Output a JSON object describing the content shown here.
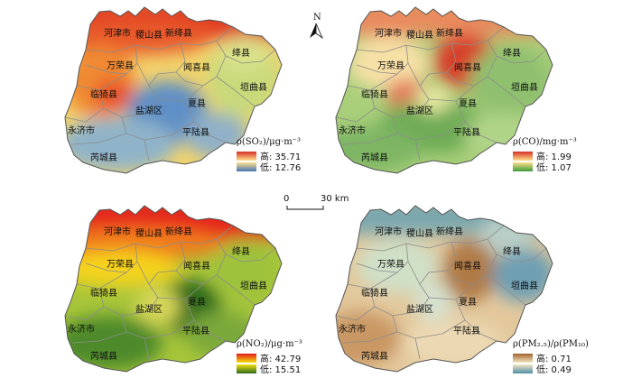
{
  "panels": [
    {
      "id": "so2",
      "legend": {
        "title": "ρ(SO₂)/μg·m⁻³",
        "high": "高: 35.71",
        "low": "低: 12.76",
        "high_color": "#d73027",
        "mid_color": "#fee08b",
        "low_color": "#4575b4"
      }
    },
    {
      "id": "co",
      "legend": {
        "title": "ρ(CO)/mg·m⁻³",
        "high": "高: 1.99",
        "low": "低: 1.07",
        "high_color": "#d73027",
        "mid_color": "#fee08b",
        "low_color": "#3a9a3a"
      }
    },
    {
      "id": "no2",
      "legend": {
        "title": "ρ(NO₂)/μg·m⁻³",
        "high": "高: 42.79",
        "low": "低: 15.51",
        "high_color": "#e41a1c",
        "mid_color": "#f3e10a",
        "low_color": "#2d6a1f"
      }
    },
    {
      "id": "pm",
      "legend": {
        "title": "ρ(PM₂.₅)/ρ(PM₁₀)",
        "high": "高: 0.71",
        "low": "低: 0.49",
        "high_color": "#a0622d",
        "mid_color": "#f5e6c4",
        "low_color": "#4f8fa8"
      }
    }
  ],
  "counties": {
    "hejin": "河津市",
    "jishan": "稷山县",
    "xinjiang": "新绛县",
    "jiangxian": "绛县",
    "wanrong": "万荣县",
    "wenxi": "闻喜县",
    "yuanqu": "垣曲县",
    "linyi": "临猗县",
    "yanhu": "盐湖区",
    "xiaxian": "夏县",
    "yongji": "永济市",
    "pinglu": "平陆县",
    "ruicheng": "芮城县"
  },
  "north_label": "N",
  "scale": {
    "zero": "0",
    "distance": "30 km"
  }
}
